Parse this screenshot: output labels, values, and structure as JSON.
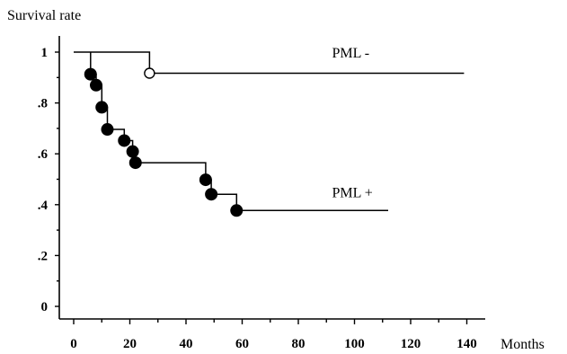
{
  "chart_data": {
    "type": "line",
    "ylabel": "Survival rate",
    "xlabel": "Months",
    "xlim": [
      0,
      140
    ],
    "ylim": [
      0,
      1
    ],
    "x_ticks": [
      {
        "value": 0,
        "label": "0"
      },
      {
        "value": 20,
        "label": "20"
      },
      {
        "value": 40,
        "label": "40"
      },
      {
        "value": 60,
        "label": "60"
      },
      {
        "value": 80,
        "label": "80"
      },
      {
        "value": 100,
        "label": "100"
      },
      {
        "value": 120,
        "label": "120"
      },
      {
        "value": 140,
        "label": "140"
      }
    ],
    "y_ticks": [
      {
        "value": 0,
        "label": "0"
      },
      {
        "value": 0.2,
        "label": ".2"
      },
      {
        "value": 0.4,
        "label": ".4"
      },
      {
        "value": 0.6,
        "label": ".6"
      },
      {
        "value": 0.8,
        "label": ".8"
      },
      {
        "value": 1,
        "label": "1"
      }
    ],
    "series": [
      {
        "name": "PML -",
        "marker": "open-circle",
        "steps": [
          [
            0,
            1.0
          ],
          [
            27,
            1.0
          ],
          [
            27,
            0.917
          ],
          [
            139,
            0.917
          ]
        ],
        "events": [
          [
            27,
            0.917
          ]
        ],
        "label_at": [
          92,
          1.0
        ]
      },
      {
        "name": "PML +",
        "marker": "filled-circle",
        "steps": [
          [
            6,
            1.0
          ],
          [
            6,
            0.913
          ],
          [
            8,
            0.913
          ],
          [
            8,
            0.87
          ],
          [
            10,
            0.87
          ],
          [
            10,
            0.783
          ],
          [
            12,
            0.783
          ],
          [
            12,
            0.696
          ],
          [
            18,
            0.696
          ],
          [
            18,
            0.652
          ],
          [
            21,
            0.652
          ],
          [
            21,
            0.609
          ],
          [
            22,
            0.609
          ],
          [
            22,
            0.565
          ],
          [
            47,
            0.565
          ],
          [
            47,
            0.498
          ],
          [
            49,
            0.498
          ],
          [
            49,
            0.441
          ],
          [
            58,
            0.441
          ],
          [
            58,
            0.377
          ],
          [
            112,
            0.377
          ]
        ],
        "events": [
          [
            6,
            0.913
          ],
          [
            8,
            0.87
          ],
          [
            10,
            0.783
          ],
          [
            12,
            0.696
          ],
          [
            18,
            0.652
          ],
          [
            21,
            0.609
          ],
          [
            22,
            0.565
          ],
          [
            47,
            0.498
          ],
          [
            49,
            0.441
          ],
          [
            58,
            0.377
          ]
        ],
        "label_at": [
          92,
          0.45
        ]
      }
    ]
  }
}
